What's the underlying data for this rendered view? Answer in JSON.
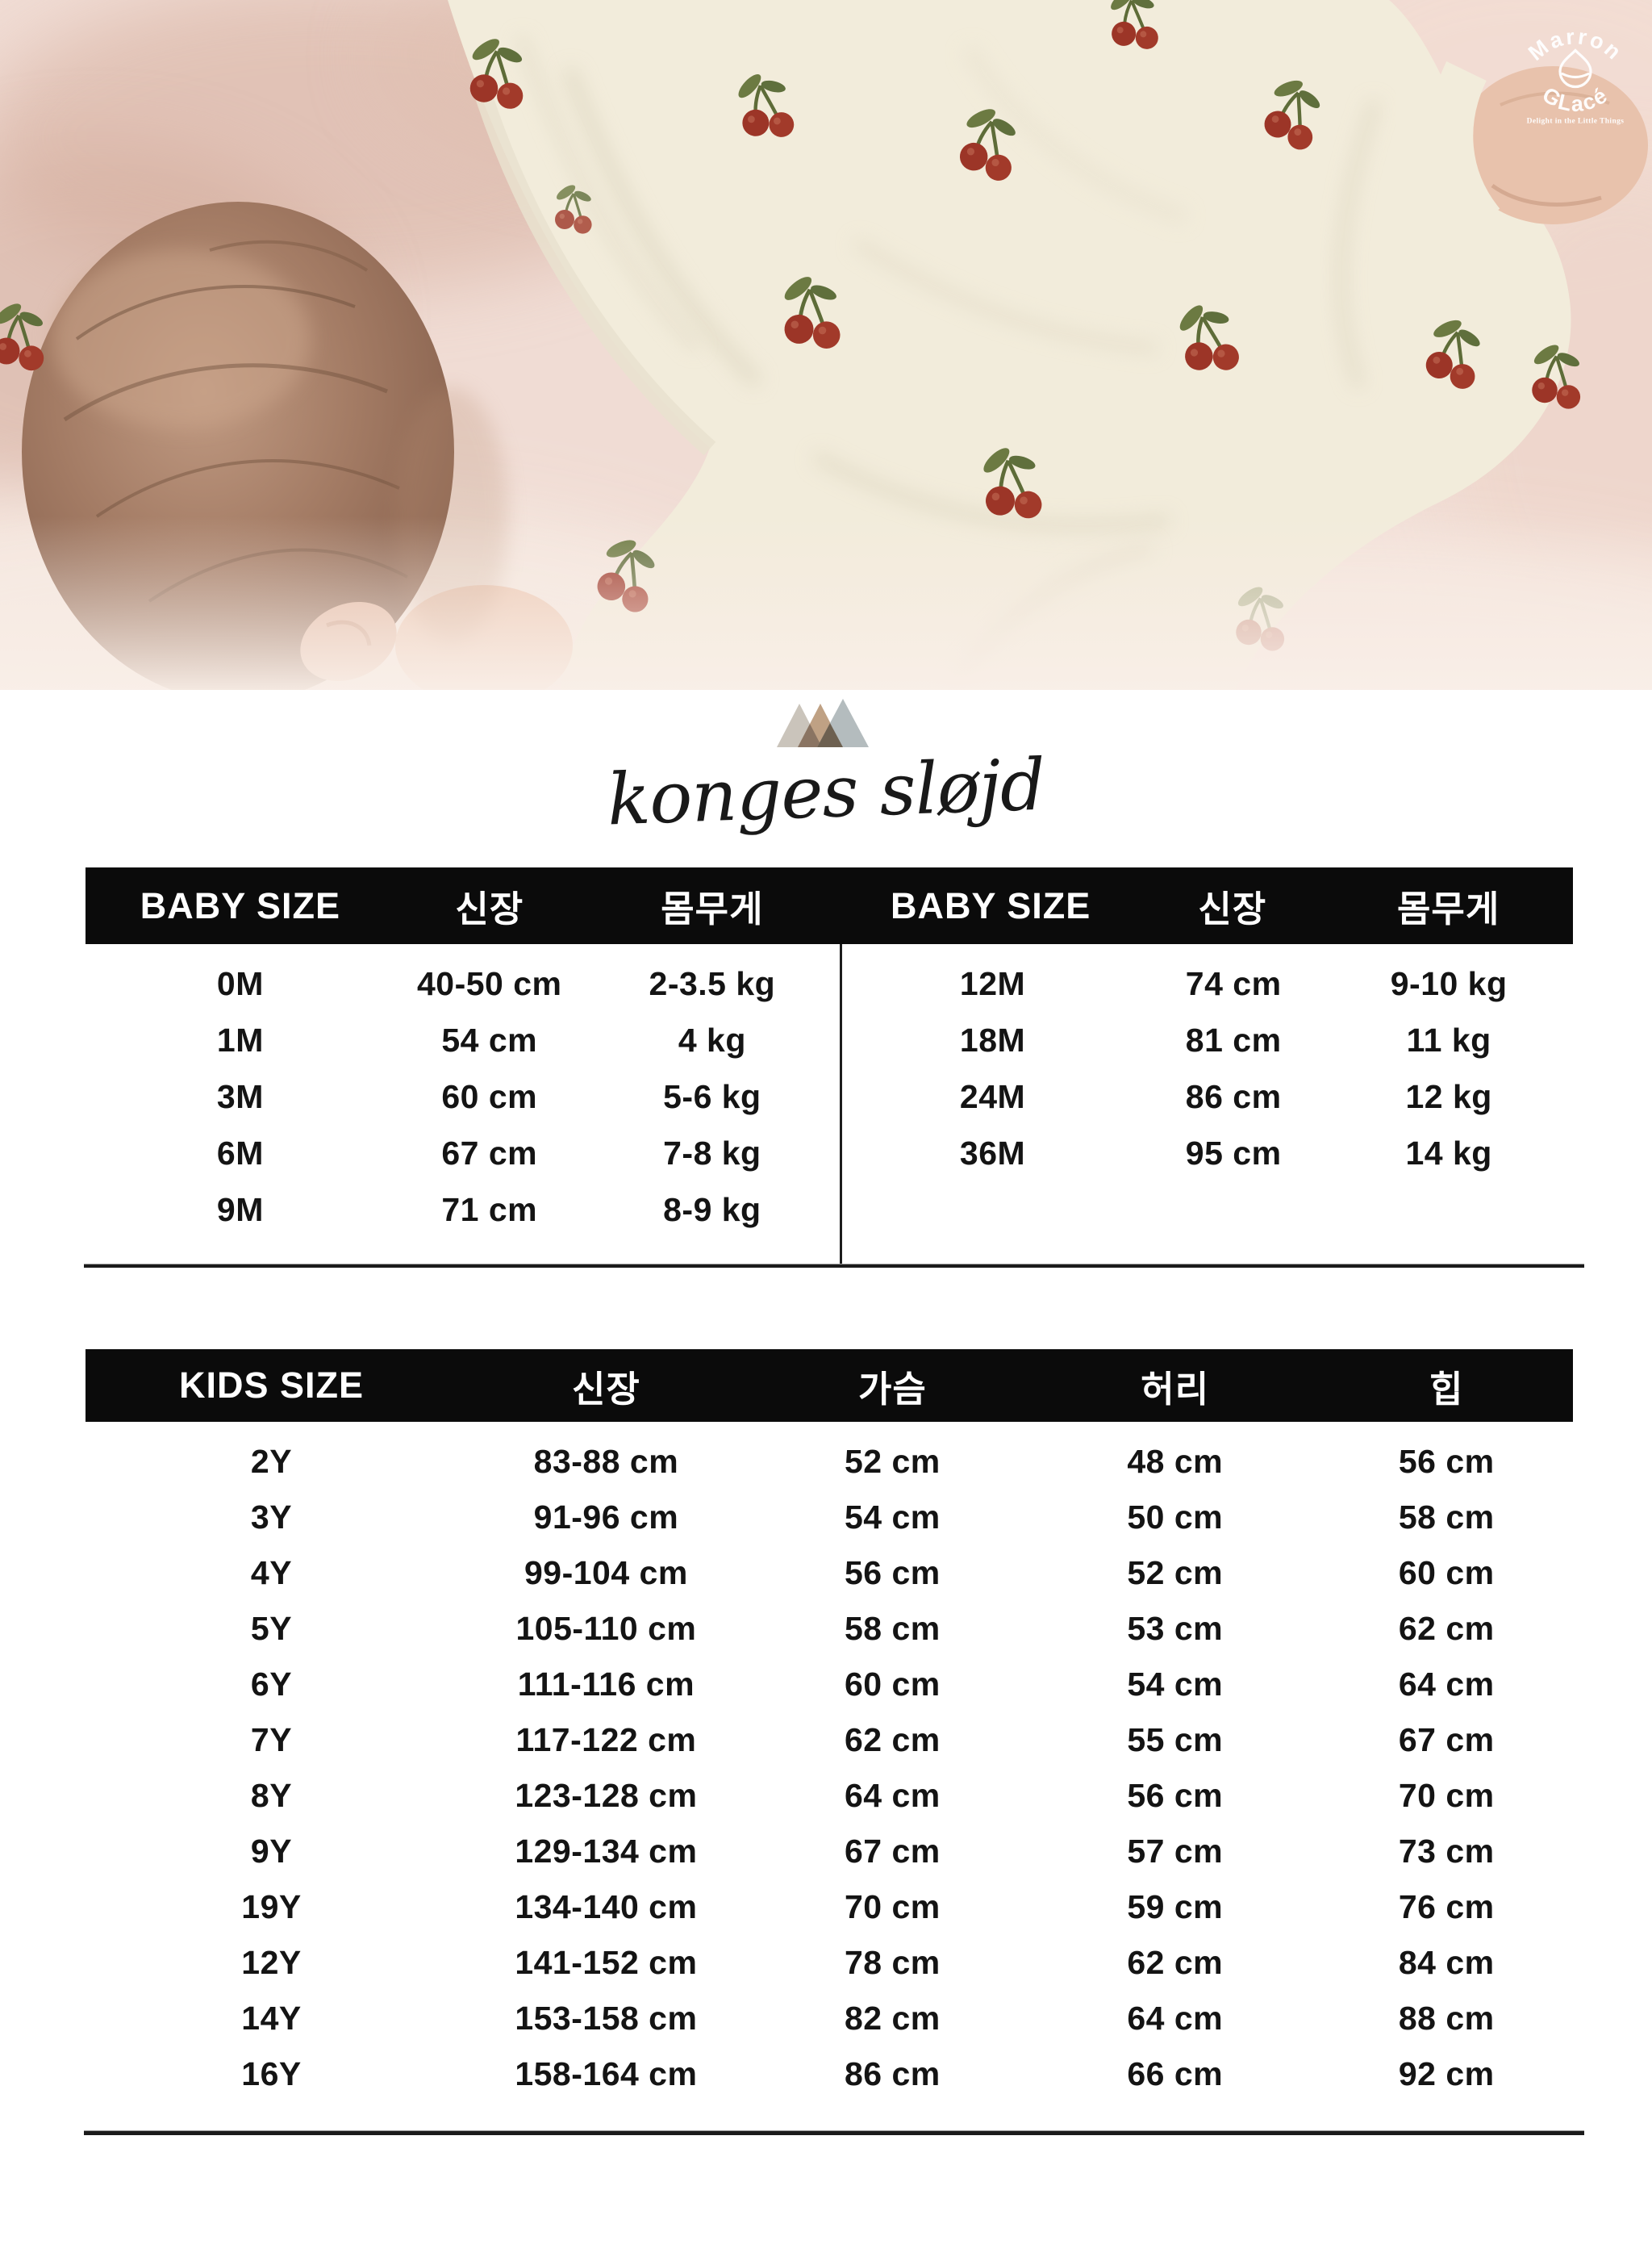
{
  "watermark": {
    "arc_text": "Marron",
    "bottom_text": "GLacé",
    "tagline": "Delight in the Little Things",
    "color": "#ffffff",
    "icon": "chestnut-icon"
  },
  "brand": {
    "wordmark": "konges sløjd",
    "triangle_colors": [
      "#cac4bb",
      "#bfa184",
      "#b4bcbe"
    ],
    "triangle_overlap_colors": [
      "#8a7462",
      "#6d6050"
    ]
  },
  "baby_table": {
    "left": {
      "headers": [
        "BABY SIZE",
        "신장",
        "몸무게"
      ],
      "rows": [
        [
          "0M",
          "40-50 cm",
          "2-3.5 kg"
        ],
        [
          "1M",
          "54 cm",
          "4 kg"
        ],
        [
          "3M",
          "60 cm",
          "5-6 kg"
        ],
        [
          "6M",
          "67 cm",
          "7-8 kg"
        ],
        [
          "9M",
          "71 cm",
          "8-9 kg"
        ]
      ]
    },
    "right": {
      "headers": [
        "BABY SIZE",
        "신장",
        "몸무게"
      ],
      "rows": [
        [
          "12M",
          "74 cm",
          "9-10 kg"
        ],
        [
          "18M",
          "81 cm",
          "11 kg"
        ],
        [
          "24M",
          "86 cm",
          "12 kg"
        ],
        [
          "36M",
          "95 cm",
          "14 kg"
        ]
      ]
    }
  },
  "kids_table": {
    "headers": [
      "KIDS SIZE",
      "신장",
      "가슴",
      "허리",
      "힙"
    ],
    "rows": [
      [
        "2Y",
        "83-88 cm",
        "52 cm",
        "48 cm",
        "56 cm"
      ],
      [
        "3Y",
        "91-96 cm",
        "54 cm",
        "50 cm",
        "58 cm"
      ],
      [
        "4Y",
        "99-104 cm",
        "56 cm",
        "52 cm",
        "60 cm"
      ],
      [
        "5Y",
        "105-110 cm",
        "58 cm",
        "53 cm",
        "62 cm"
      ],
      [
        "6Y",
        "111-116 cm",
        "60 cm",
        "54 cm",
        "64 cm"
      ],
      [
        "7Y",
        "117-122 cm",
        "62 cm",
        "55 cm",
        "67 cm"
      ],
      [
        "8Y",
        "123-128 cm",
        "64 cm",
        "56 cm",
        "70 cm"
      ],
      [
        "9Y",
        "129-134 cm",
        "67 cm",
        "57 cm",
        "73 cm"
      ],
      [
        "19Y",
        "134-140 cm",
        "70 cm",
        "59 cm",
        "76 cm"
      ],
      [
        "12Y",
        "141-152 cm",
        "78 cm",
        "62 cm",
        "84 cm"
      ],
      [
        "14Y",
        "153-158 cm",
        "82 cm",
        "64 cm",
        "88 cm"
      ],
      [
        "16Y",
        "158-164 cm",
        "86 cm",
        "66 cm",
        "92 cm"
      ]
    ]
  },
  "colors": {
    "header_bg": "#0b0b0b",
    "header_text": "#ffffff",
    "row_text": "#141414",
    "bedding": "#f0dcd4",
    "onesie": "#f2ecdb",
    "cherry": "#9c3527",
    "leaf": "#6c7a42",
    "hair": "#8d6753"
  }
}
